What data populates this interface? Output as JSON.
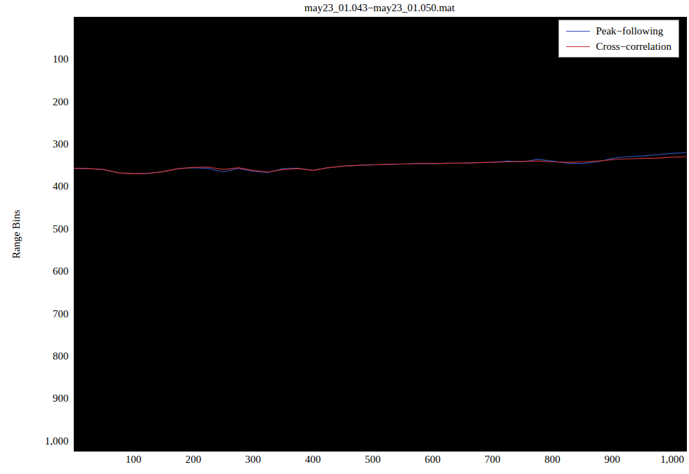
{
  "chart_data": {
    "type": "line",
    "title": "may23_01.043−may23_01.050.mat",
    "y_label": "Range Bins",
    "x": [
      1,
      25,
      50,
      75,
      100,
      125,
      150,
      175,
      200,
      225,
      250,
      275,
      300,
      325,
      350,
      375,
      400,
      425,
      450,
      475,
      500,
      525,
      550,
      575,
      600,
      625,
      650,
      675,
      700,
      725,
      750,
      775,
      800,
      825,
      850,
      875,
      900,
      925,
      950,
      975,
      1000,
      1024
    ],
    "series": [
      {
        "name": "Peak−following",
        "color": "#3355bb",
        "values": [
          357,
          358,
          360,
          368,
          370,
          369,
          365,
          358,
          356,
          357,
          366,
          357,
          364,
          367,
          358,
          357,
          362,
          356,
          352,
          350,
          349,
          348,
          347,
          346,
          346,
          345,
          345,
          344,
          343,
          340,
          342,
          336,
          340,
          345,
          346,
          342,
          334,
          330,
          328,
          325,
          322,
          320
        ]
      },
      {
        "name": "Cross−correlation",
        "color": "#cc3333",
        "values": [
          357,
          358,
          360,
          368,
          370,
          369,
          365,
          358,
          355,
          354,
          360,
          356,
          362,
          366,
          360,
          358,
          362,
          356,
          352,
          350,
          349,
          348,
          347,
          346,
          346,
          345,
          345,
          344,
          343,
          342,
          341,
          340,
          342,
          343,
          342,
          340,
          337,
          335,
          334,
          333,
          331,
          330
        ]
      }
    ],
    "xlim": [
      1,
      1024
    ],
    "ylim": [
      1024,
      1
    ],
    "xticks": [
      100,
      200,
      300,
      400,
      500,
      600,
      700,
      800,
      900,
      1000
    ],
    "yticks": [
      100,
      200,
      300,
      400,
      500,
      600,
      700,
      800,
      900,
      1000
    ],
    "legend": "top-right",
    "grid": false
  }
}
